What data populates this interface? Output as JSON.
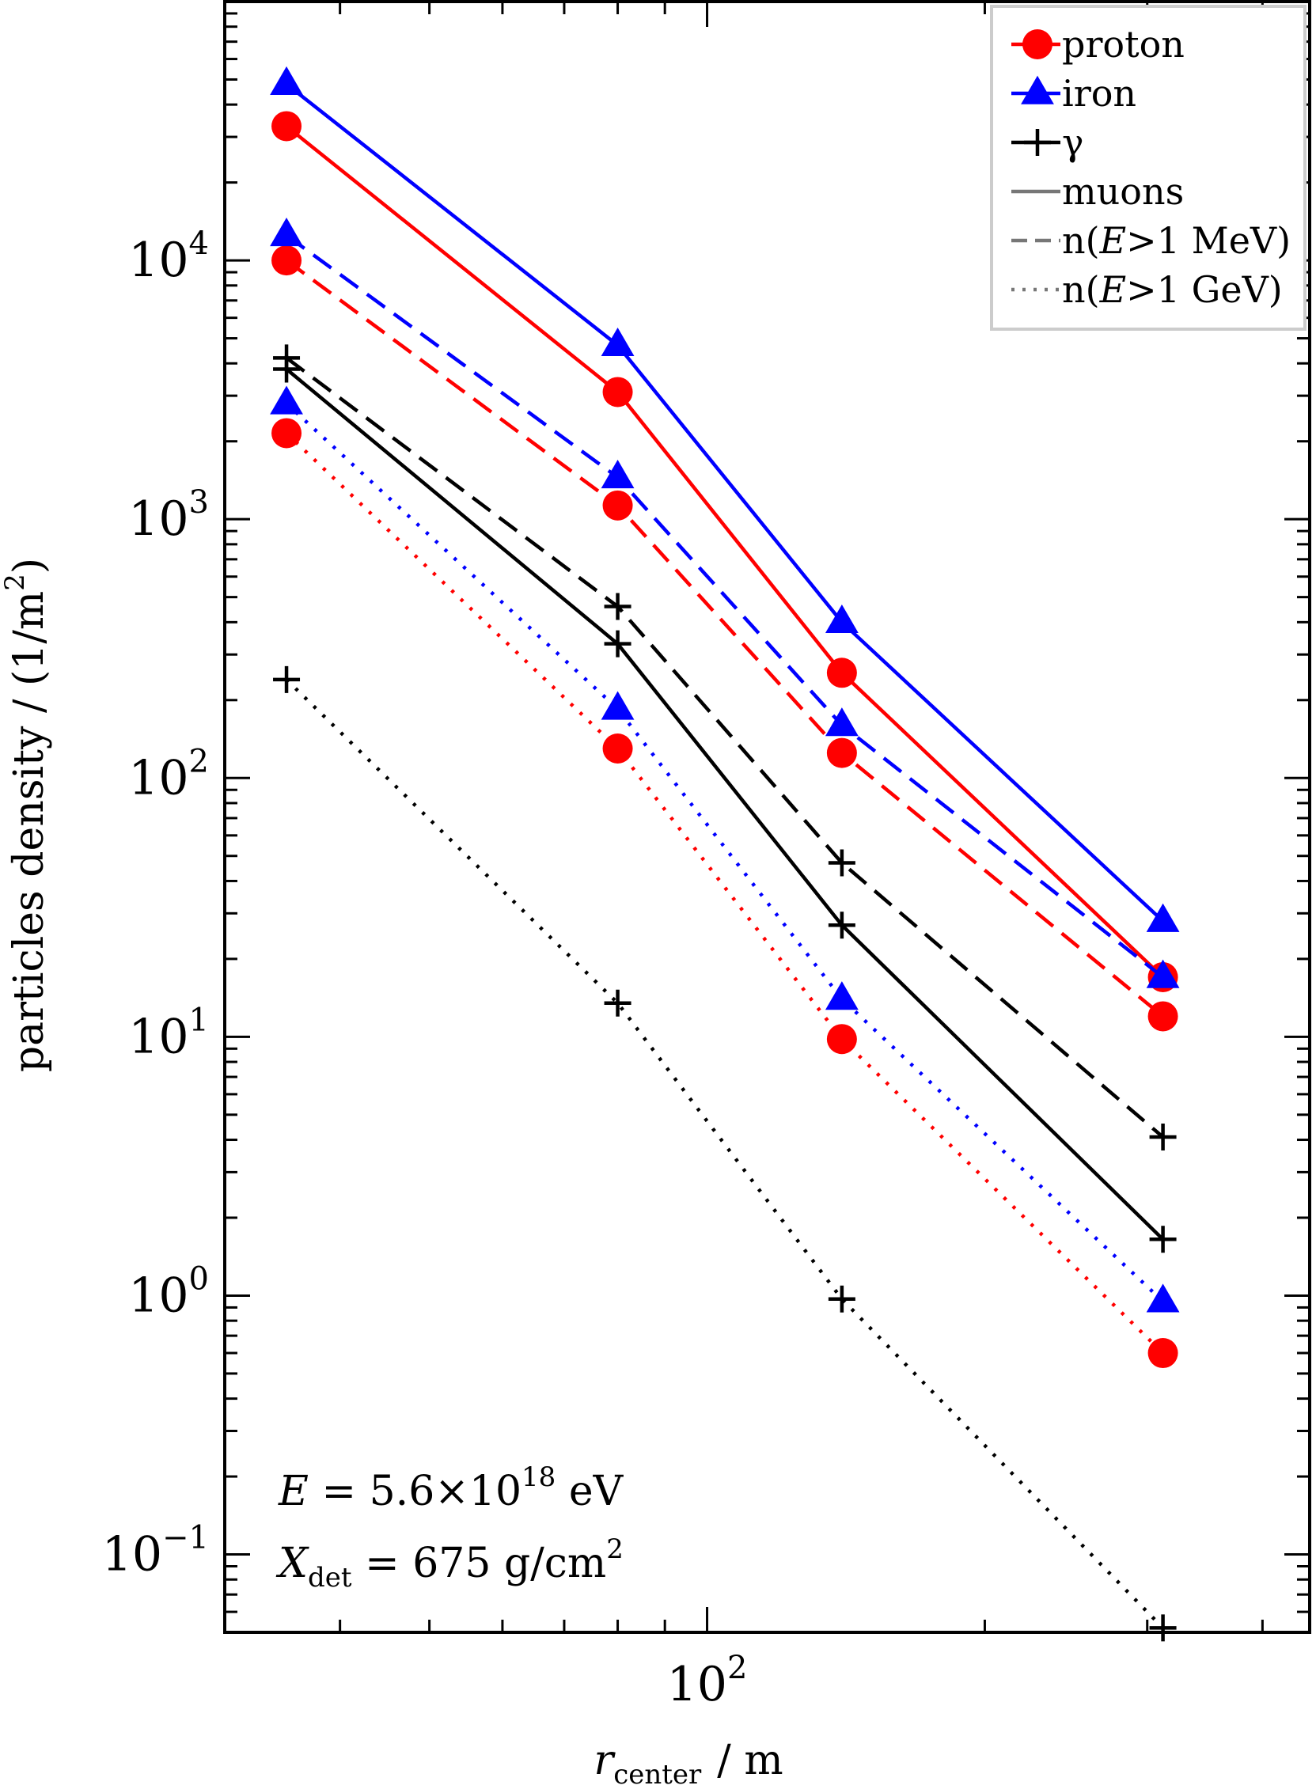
{
  "chart_data": {
    "type": "line",
    "xscale": "log",
    "yscale": "log",
    "xlim": [
      30,
      450
    ],
    "ylim": [
      0.05,
      100000
    ],
    "xlabel": {
      "var": "r",
      "sub": "center",
      "unit": "/ m"
    },
    "ylabel": {
      "text": "particles density / (1/m",
      "sup": "2",
      "tail": ")"
    },
    "x_ticklabels": [
      {
        "value": 100,
        "base": "10",
        "exp": "2"
      }
    ],
    "y_ticklabels": [
      {
        "value": 0.1,
        "base": "10",
        "exp": "−1"
      },
      {
        "value": 1,
        "base": "10",
        "exp": "0"
      },
      {
        "value": 10,
        "base": "10",
        "exp": "1"
      },
      {
        "value": 100,
        "base": "10",
        "exp": "2"
      },
      {
        "value": 1000,
        "base": "10",
        "exp": "3"
      },
      {
        "value": 10000,
        "base": "10",
        "exp": "4"
      }
    ],
    "x": [
      35,
      80,
      140,
      312
    ],
    "colors": {
      "proton": "#ff0000",
      "iron": "#0000ff",
      "gamma": "#000000"
    },
    "series": [
      {
        "particle": "proton",
        "component": "muons",
        "marker": "circle",
        "values": [
          33000,
          3100,
          255,
          17
        ]
      },
      {
        "particle": "proton",
        "component": "n(E>1 MeV)",
        "marker": "circle",
        "values": [
          10000,
          1130,
          125,
          12
        ]
      },
      {
        "particle": "proton",
        "component": "n(E>1 GeV)",
        "marker": "circle",
        "values": [
          2150,
          130,
          9.8,
          0.6
        ]
      },
      {
        "particle": "iron",
        "component": "muons",
        "marker": "triangle",
        "values": [
          48000,
          4700,
          400,
          28
        ]
      },
      {
        "particle": "iron",
        "component": "n(E>1 MeV)",
        "marker": "triangle",
        "values": [
          12500,
          1450,
          160,
          17
        ]
      },
      {
        "particle": "iron",
        "component": "n(E>1 GeV)",
        "marker": "triangle",
        "values": [
          2800,
          185,
          14,
          0.95
        ]
      },
      {
        "particle": "gamma",
        "component": "muons",
        "marker": "plus",
        "values": [
          3800,
          330,
          27,
          1.65
        ]
      },
      {
        "particle": "gamma",
        "component": "n(E>1 MeV)",
        "marker": "plus",
        "values": [
          4200,
          460,
          47,
          4.1
        ]
      },
      {
        "particle": "gamma",
        "component": "n(E>1 GeV)",
        "marker": "plus",
        "values": [
          240,
          13.5,
          0.97,
          0.052
        ]
      }
    ],
    "legend": {
      "position": "top-right",
      "particles": [
        {
          "key": "proton",
          "label": "proton",
          "marker": "circle"
        },
        {
          "key": "iron",
          "label": "iron",
          "marker": "triangle"
        },
        {
          "key": "gamma",
          "label": "γ",
          "marker": "plus"
        }
      ],
      "components": [
        {
          "key": "muons",
          "style": "solid",
          "label": "muons"
        },
        {
          "key": "n(E>1 MeV)",
          "style": "dashed",
          "label_pre": "n(",
          "label_var": "E",
          "label_post": ">1 MeV)"
        },
        {
          "key": "n(E>1 GeV)",
          "style": "dotted",
          "label_pre": "n(",
          "label_var": "E",
          "label_post": ">1 GeV)"
        }
      ]
    },
    "annotations": {
      "energy": {
        "var": "E",
        "eq": " = 5.6×10",
        "exp": "18",
        "unit": " eV"
      },
      "depth": {
        "var": "X",
        "sub": "det",
        "eq": " = 675 g/cm",
        "exp": "2"
      }
    }
  }
}
